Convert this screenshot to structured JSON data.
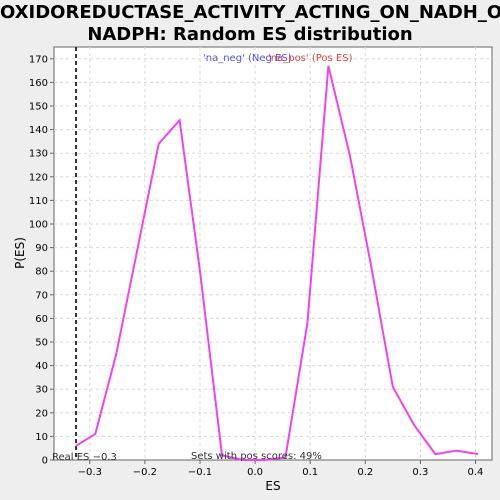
{
  "chart_data": {
    "type": "line",
    "title_lines": [
      "OXIDOREDUCTASE_ACTIVITY_ACTING_ON_NADH_OR_",
      "NADPH: Random ES distribution"
    ],
    "xlabel": "ES",
    "ylabel": "P(ES)",
    "xlim": [
      -0.365,
      0.43
    ],
    "ylim": [
      0,
      175
    ],
    "x_ticks": [
      -0.3,
      -0.2,
      -0.1,
      0.0,
      0.1,
      0.2,
      0.3,
      0.4
    ],
    "x_tick_labels": [
      "−0.3",
      "−0.2",
      "−0.1",
      "0.0",
      "0.1",
      "0.2",
      "0.3",
      "0.4"
    ],
    "y_ticks": [
      0,
      10,
      20,
      30,
      40,
      50,
      60,
      70,
      80,
      90,
      100,
      110,
      120,
      130,
      140,
      150,
      160,
      170
    ],
    "y_tick_labels": [
      "0",
      "10",
      "20",
      "30",
      "40",
      "50",
      "60",
      "70",
      "80",
      "90",
      "100",
      "110",
      "120",
      "130",
      "140",
      "150",
      "160",
      "170"
    ],
    "grid": true,
    "series": [
      {
        "color": "#ee44ee",
        "x": [
          -0.325,
          -0.29,
          -0.252,
          -0.175,
          -0.137,
          -0.1,
          -0.06,
          -0.022,
          0.017,
          0.055,
          0.095,
          0.133,
          0.172,
          0.21,
          0.25,
          0.288,
          0.327,
          0.365,
          0.405
        ],
        "y": [
          6,
          11,
          45,
          134,
          144,
          80,
          2,
          0,
          0,
          1,
          58,
          167,
          129,
          83,
          31,
          15,
          2.5,
          4,
          2.5
        ]
      }
    ],
    "legend": {
      "neg_label": "'na_neg' (Neg ES)",
      "pos_label": "'na_pos' (Pos ES)",
      "placement": "top-center"
    },
    "real_es": {
      "value": -0.325,
      "label": "Real ES −0.3"
    },
    "annotation": "Sets with pos scores: 49%"
  }
}
